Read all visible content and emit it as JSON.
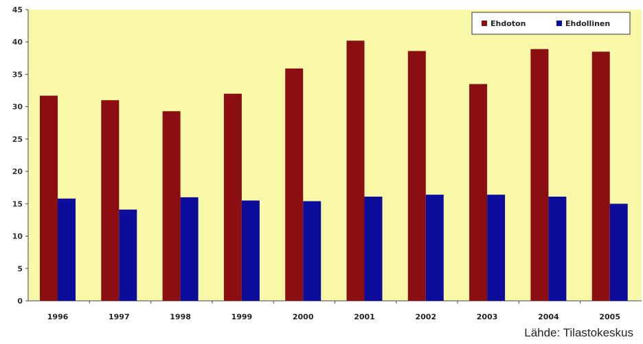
{
  "chart_data": {
    "type": "bar",
    "categories": [
      "1996",
      "1997",
      "1998",
      "1999",
      "2000",
      "2001",
      "2002",
      "2003",
      "2004",
      "2005"
    ],
    "series": [
      {
        "name": "Ehdoton",
        "values": [
          31.7,
          31.0,
          29.3,
          32.0,
          35.9,
          40.2,
          38.6,
          33.5,
          38.9,
          38.5
        ]
      },
      {
        "name": "Ehdollinen",
        "values": [
          15.8,
          14.1,
          16.0,
          15.5,
          15.4,
          16.1,
          16.4,
          16.4,
          16.1,
          15.0
        ]
      }
    ],
    "ylim": [
      0,
      45
    ],
    "yticks": [
      0,
      5,
      10,
      15,
      20,
      25,
      30,
      35,
      40,
      45
    ],
    "grid": false,
    "legend_position": "top-right",
    "title": "",
    "xlabel": "",
    "ylabel": ""
  },
  "colors": {
    "plot_background": "#f9f7a8",
    "series_0": "#8b0f12",
    "series_1": "#0d0d9c"
  },
  "source_text": "Lähde:  Tilastokeskus"
}
